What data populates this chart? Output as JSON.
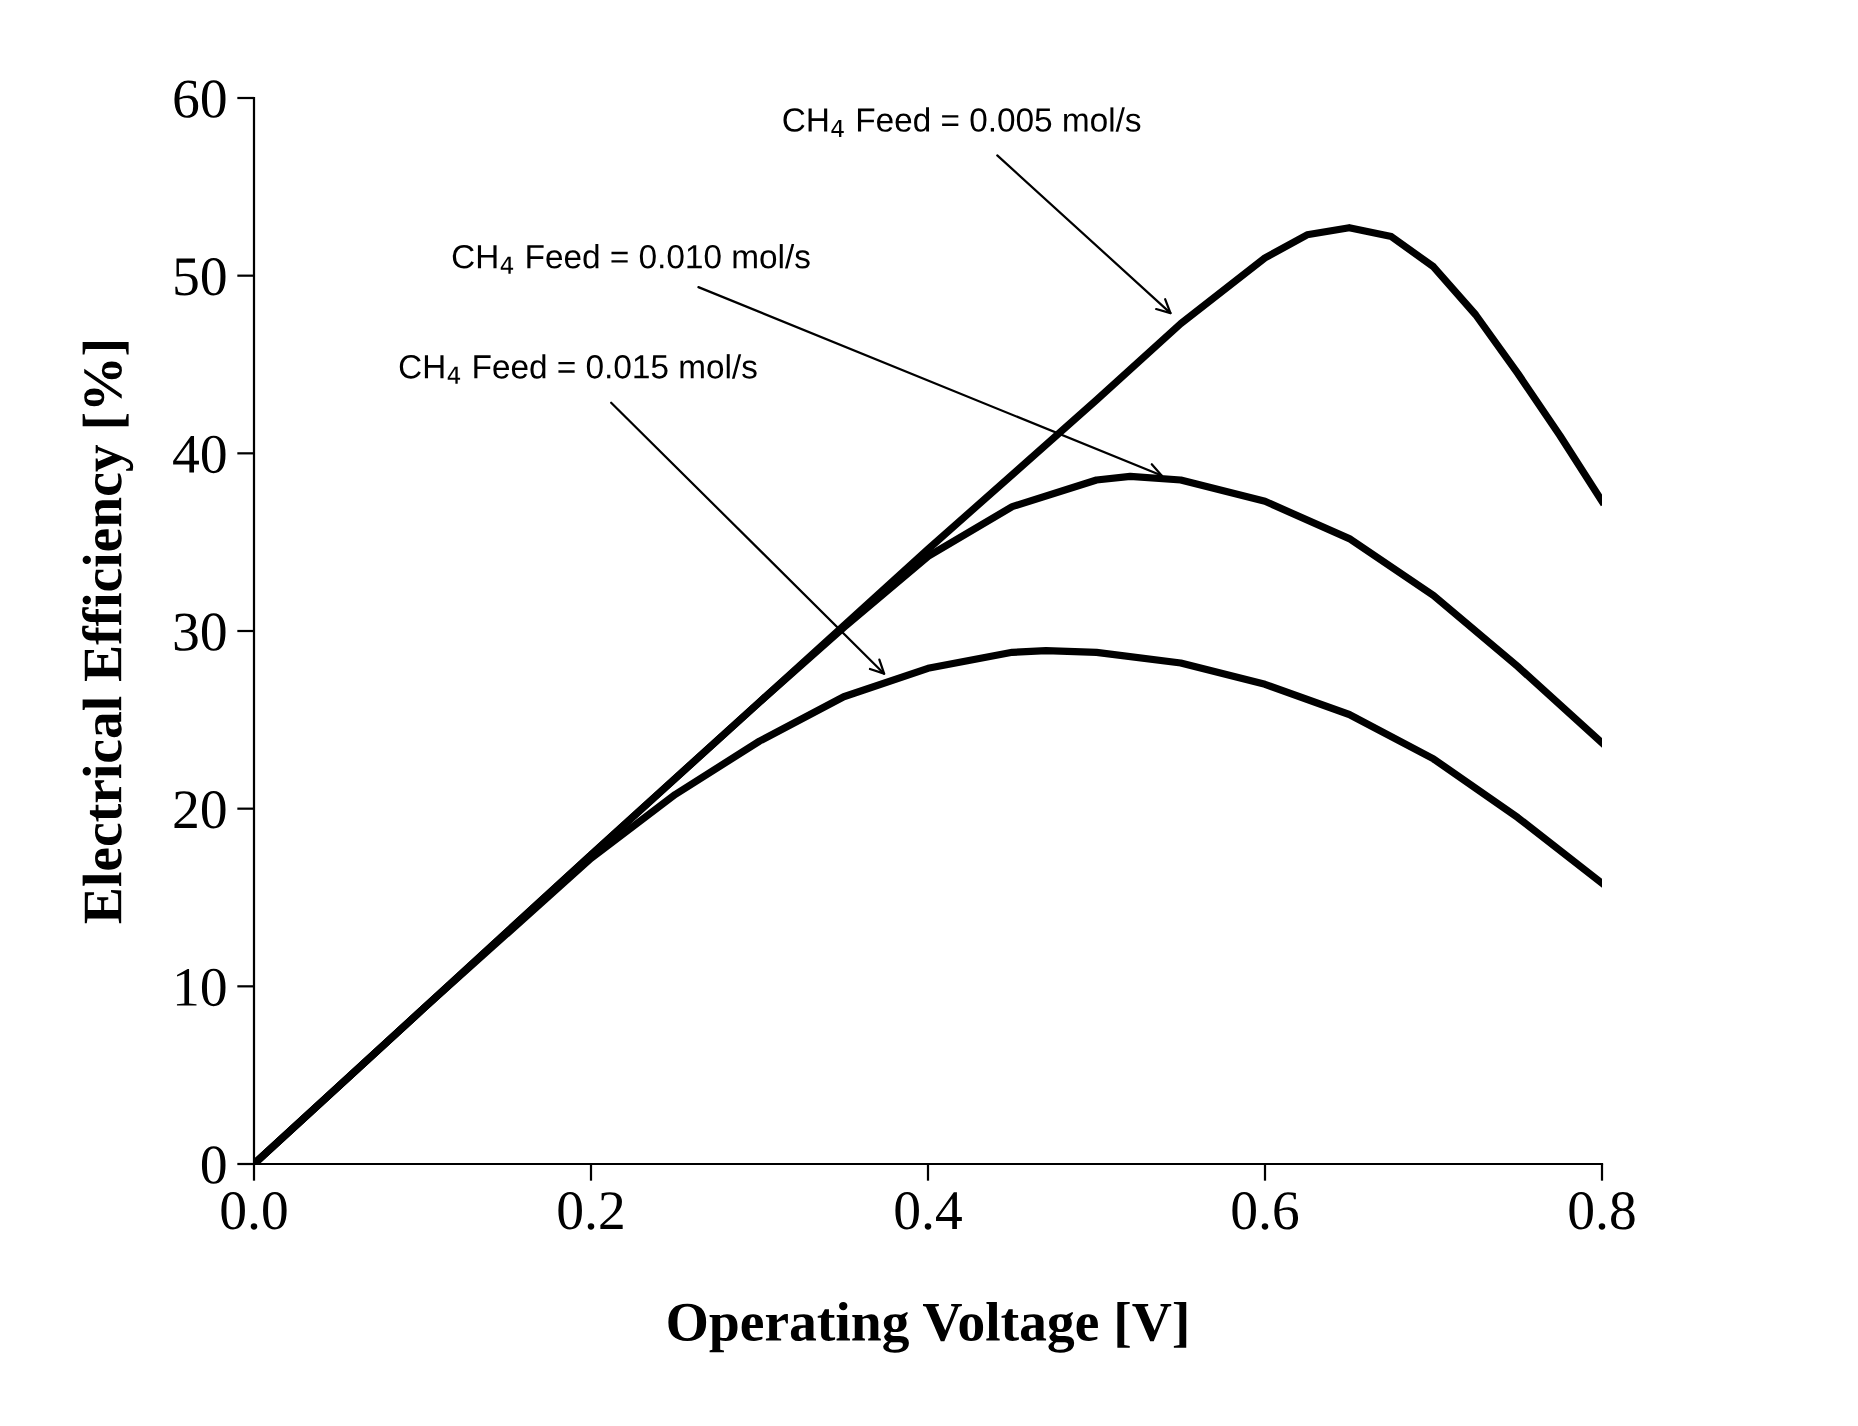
{
  "chart_data": {
    "type": "line",
    "xlabel": "Operating Voltage [V]",
    "ylabel": "Electrical Efficiency [%]",
    "xlim": [
      0,
      0.8
    ],
    "xticks": [
      {
        "value": 0,
        "label": "0.0"
      },
      0.2,
      0.4,
      0.6,
      0.8
    ],
    "ylim": [
      0,
      60
    ],
    "yticks": [
      0,
      10,
      20,
      30,
      40,
      50,
      60
    ],
    "grid": false,
    "legend": false,
    "marker": "none",
    "line_style": "solid",
    "series": [
      {
        "color": "#000000",
        "x": [
          0,
          0.1,
          0.2,
          0.3,
          0.4,
          0.5,
          0.55,
          0.6,
          0.625,
          0.65,
          0.675,
          0.7,
          0.725,
          0.75,
          0.775,
          0.8
        ],
        "values": [
          0,
          8.7,
          17.4,
          26,
          34.6,
          43,
          47.3,
          51,
          52.3,
          52.7,
          52.2,
          50.5,
          47.8,
          44.5,
          41,
          37.3
        ]
      },
      {
        "color": "#000000",
        "x": [
          0,
          0.1,
          0.2,
          0.3,
          0.35,
          0.4,
          0.45,
          0.5,
          0.52,
          0.55,
          0.6,
          0.65,
          0.7,
          0.75,
          0.8
        ],
        "values": [
          0,
          8.7,
          17.4,
          26,
          30.2,
          34.2,
          37.0,
          38.5,
          38.7,
          38.5,
          37.3,
          35.2,
          32,
          28,
          23.7
        ]
      },
      {
        "color": "#000000",
        "x": [
          0,
          0.1,
          0.2,
          0.25,
          0.3,
          0.35,
          0.4,
          0.45,
          0.47,
          0.5,
          0.55,
          0.6,
          0.65,
          0.7,
          0.75,
          0.8
        ],
        "values": [
          0,
          8.7,
          17.2,
          20.8,
          23.8,
          26.3,
          27.9,
          28.8,
          28.9,
          28.8,
          28.2,
          27,
          25.3,
          22.8,
          19.5,
          15.8
        ]
      }
    ],
    "annotations": [
      {
        "text": "CH$_{4}$ Feed = 0.005 mol/s",
        "x": 0.545,
        "y": 47.8
      },
      {
        "text": "CH$_{4}$ Feed = 0.010 mol/s",
        "x": 0.54,
        "y": 38.7
      },
      {
        "text": "CH$_{4}$ Feed = 0.015 mol/s",
        "x": 0.375,
        "y": 27.5
      }
    ]
  }
}
